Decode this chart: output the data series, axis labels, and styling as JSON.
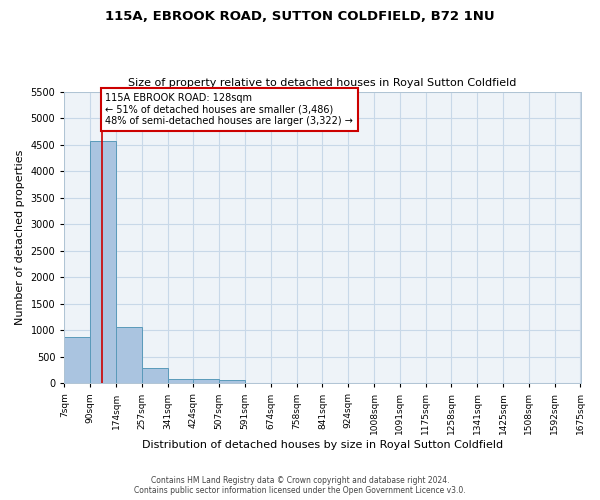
{
  "title1": "115A, EBROOK ROAD, SUTTON COLDFIELD, B72 1NU",
  "title2": "Size of property relative to detached houses in Royal Sutton Coldfield",
  "xlabel": "Distribution of detached houses by size in Royal Sutton Coldfield",
  "ylabel": "Number of detached properties",
  "footnote1": "Contains HM Land Registry data © Crown copyright and database right 2024.",
  "footnote2": "Contains public sector information licensed under the Open Government Licence v3.0.",
  "annotation_line1": "115A EBROOK ROAD: 128sqm",
  "annotation_line2": "← 51% of detached houses are smaller (3,486)",
  "annotation_line3": "48% of semi-detached houses are larger (3,322) →",
  "property_size_sqm": 128,
  "bar_edges": [
    7,
    90,
    174,
    257,
    341,
    424,
    507,
    591,
    674,
    758,
    841,
    924,
    1008,
    1091,
    1175,
    1258,
    1341,
    1425,
    1508,
    1592,
    1675
  ],
  "bar_heights": [
    880,
    4560,
    1060,
    290,
    90,
    80,
    55,
    0,
    0,
    0,
    0,
    0,
    0,
    0,
    0,
    0,
    0,
    0,
    0,
    0
  ],
  "bar_color": "#aac4e0",
  "bar_edge_color": "#5a9aba",
  "red_line_color": "#cc0000",
  "annotation_box_color": "#cc0000",
  "grid_color": "#c8d8e8",
  "bg_color": "#eef3f8",
  "ylim": [
    0,
    5500
  ],
  "yticks": [
    0,
    500,
    1000,
    1500,
    2000,
    2500,
    3000,
    3500,
    4000,
    4500,
    5000,
    5500
  ]
}
